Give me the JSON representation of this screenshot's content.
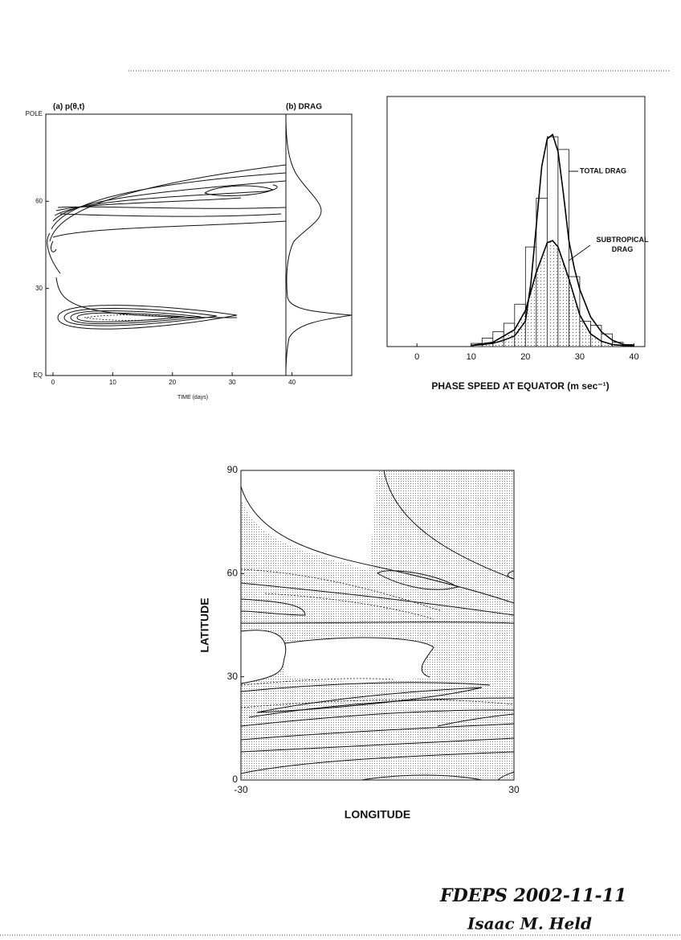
{
  "chart_data": [
    {
      "type": "contour",
      "panel_labels": [
        "(a)  p(θ,t)",
        "(b)  DRAG"
      ],
      "xlabel": "TIME (days)",
      "xlim": [
        -1.2,
        50
      ],
      "xticks": [
        0,
        10,
        20,
        30,
        40
      ],
      "ylim": [
        0,
        90
      ],
      "yticks": [
        {
          "value": 0,
          "label": "EQ"
        },
        30,
        60,
        {
          "value": 90,
          "label": "POLE"
        }
      ]
    },
    {
      "type": "histogram",
      "xlabel": "PHASE SPEED AT EQUATOR  (m sec⁻¹)",
      "bins": [
        10,
        12,
        14,
        16,
        18,
        20,
        22,
        24,
        26,
        28,
        30,
        32,
        34,
        36,
        38,
        40
      ],
      "values": [
        1.5,
        4,
        7,
        11,
        20,
        47,
        70,
        99,
        93,
        33,
        12,
        10,
        6,
        2,
        1
      ],
      "color": "#ffffff",
      "xlim": [
        -5.5,
        42
      ],
      "xticks": [
        0,
        10,
        20,
        30,
        40
      ],
      "ylim": [
        0,
        118
      ],
      "series": [
        {
          "name": "TOTAL DRAG",
          "color": "#000000",
          "x": [
            10,
            12,
            14,
            16,
            18,
            20,
            21,
            22,
            23,
            24,
            25,
            26,
            27,
            28,
            29,
            30,
            32,
            34,
            36,
            38,
            40
          ],
          "values": [
            0.5,
            1,
            1.5,
            3,
            5,
            12,
            30,
            57,
            85,
            98,
            100,
            92,
            72,
            50,
            37,
            27,
            14,
            7,
            3,
            1,
            0.5
          ]
        },
        {
          "name": "SUBTROPICAL DRAG",
          "color": "#000000",
          "x": [
            10,
            14,
            18,
            20,
            22,
            24,
            25,
            26,
            28,
            30,
            32,
            34,
            36,
            38,
            40
          ],
          "values": [
            0.5,
            2,
            8,
            17,
            35,
            49,
            50,
            47,
            32,
            15,
            6,
            2.5,
            1,
            0.5,
            0.2
          ]
        }
      ]
    },
    {
      "type": "contour",
      "xlabel": "LONGITUDE",
      "ylabel": "LATITUDE",
      "xlim": [
        -30,
        30
      ],
      "xticks": [
        -30,
        30
      ],
      "ylim": [
        0,
        90
      ],
      "yticks": [
        0,
        30,
        60,
        90
      ]
    }
  ],
  "footer": {
    "lines": [
      "FDEPS 2002-11-11",
      "Isaac M. Held"
    ]
  }
}
